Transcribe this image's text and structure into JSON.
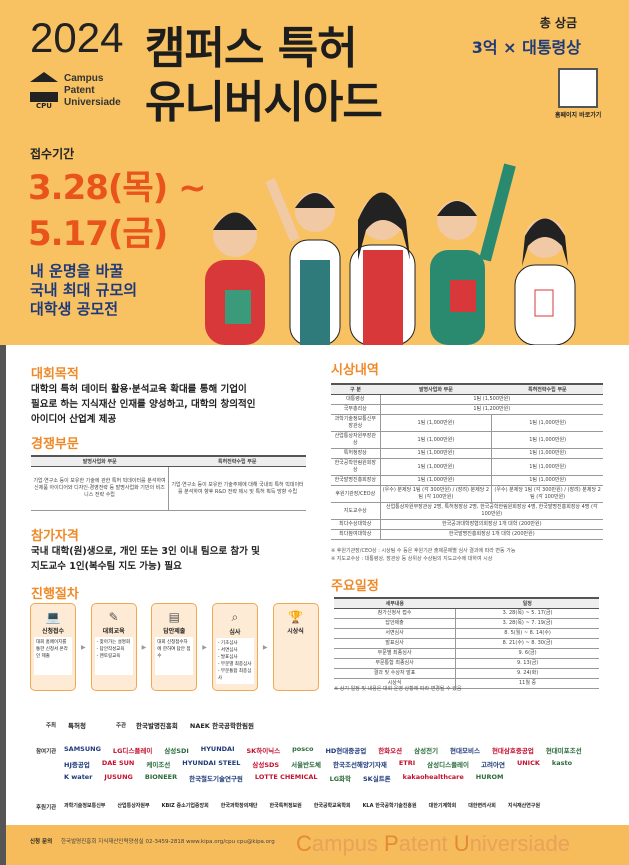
{
  "header": {
    "year": "2024",
    "title_line1": "캠퍼스 특허",
    "title_line2": "유니버시아드",
    "logo_abbr": "CPU",
    "logo_text": [
      "Campus",
      "Patent",
      "Universiade"
    ],
    "prize_label": "총 상금",
    "prize_value": "3억 × 대통령상",
    "qr_label": "홈페이지 바로가기",
    "reception_label": "접수기간",
    "date_start": "3.28(목) ~",
    "date_end": "5.17(금)",
    "slogan": [
      "내 운명을 바꿀",
      "국내 최대 규모의",
      "대학생 공모전"
    ]
  },
  "colors": {
    "background": "#F8C262",
    "accent": "#E8541C",
    "heading": "#EE8A2A",
    "navy": "#1f3a7a"
  },
  "purpose": {
    "title": "대회목적",
    "text": [
      "대학의 특허 데이터 활용·분석교육 확대를 통해 기업이",
      "필요로 하는 지식재산 인재를 양성하고, 대학의 창의적인",
      "아이디어 산업계 제공"
    ]
  },
  "categories": {
    "title": "경쟁부문",
    "headers": [
      "발명사업화 부문",
      "특허전략수립 부문"
    ],
    "cells": [
      "기업·연구소 등이 보유한 기술에 관한 특허 빅데이터를 분석하여 신제품 아이디어와 디자인·경영전략 등 발명사업화 기반의 비즈니스 전략 수립",
      "기업·연구소 등이 보유한 기술주제에 대해 국내외 특허 빅데이터를 분석하여 향후 R&D 전략 제시 및 특허 획득 방향 수립"
    ]
  },
  "eligibility": {
    "title": "참가자격",
    "text": [
      "국내 대학(원)생으로, 개인 또는 3인 이내 팀으로 참가 및",
      "지도교수 1인(복수팀 지도 가능) 필요"
    ]
  },
  "process": {
    "title": "진행절차",
    "steps": [
      {
        "name": "신청접수",
        "icon": "laptop-icon",
        "desc": "대회 홈페이지를 통한 신청서 온라인 제출"
      },
      {
        "name": "대회교육",
        "icon": "pen-icon",
        "desc": "- 찾아가는 설명회\n- 답안작성교육\n- 멘토링교육"
      },
      {
        "name": "답안제출",
        "icon": "document-icon",
        "desc": "대회 신청접수자에 한하여 답안 접수"
      },
      {
        "name": "심사",
        "icon": "magnifier-icon",
        "desc": "- 기초심사\n- 서면심사\n- 발표심사\n- 부문별 최종심사\n- 부문통합 최종심사"
      },
      {
        "name": "시상식",
        "icon": "trophy-icon",
        "desc": ""
      }
    ]
  },
  "awards": {
    "title": "시상내역",
    "headers": [
      "구 분",
      "발명사업화 부문",
      "특허전략수립 부문"
    ],
    "rows": [
      [
        "대통령상",
        "1팀 (1,500만원)",
        ""
      ],
      [
        "국무총리상",
        "1팀 (1,200만원)",
        ""
      ],
      [
        "과학기술정보통신부장관상",
        "1팀 (1,000만원)",
        "1팀 (1,000만원)"
      ],
      [
        "산업통상자원부장관상",
        "1팀 (1,000만원)",
        "1팀 (1,000만원)"
      ],
      [
        "특허청장상",
        "1팀 (1,000만원)",
        "1팀 (1,000만원)"
      ],
      [
        "한국공학한림원회장상",
        "1팀 (1,000만원)",
        "1팀 (1,000만원)"
      ],
      [
        "한국발명진흥회장상",
        "1팀 (1,000만원)",
        "1팀 (1,000만원)"
      ],
      [
        "후원기관장/CEO상",
        "(우수) 분제당 1팀 (각 300만원) / (장려) 분제당 2팀 (각 100만원)",
        "(우수) 분제당 1팀 (각 300만원) / (장려) 분제당 2팀 (각 100만원)"
      ],
      [
        "지도교수상",
        "산업통상자원부장관상 2명, 특허청장상 2명, 한국공학한림원회장상 4명, 한국발명진흥회장상 4명 (각 100만원)",
        ""
      ],
      [
        "최다수상대학상",
        "한국공과대학장협의회장상 1개 대학 (200만원)",
        ""
      ],
      [
        "최다참여대학상",
        "한국발명진흥회장상 1개 대학 (200만원)",
        ""
      ]
    ],
    "notes": [
      "※ 후원기관장/CEO상 : 시상팀 수 등은 후원기관 출제문제별 심사 결과에 따라 변동 가능",
      "※ 지도교수상 : 대통령상, 장관상 등 상위상 수상팀의 지도교수에 대하여 시상"
    ]
  },
  "schedule": {
    "title": "주요일정",
    "headers": [
      "세부내용",
      "일정"
    ],
    "rows": [
      [
        "참가신청서 접수",
        "3. 28(목) ~ 5. 17(금)"
      ],
      [
        "답안제출",
        "3. 28(목) ~ 7. 19(금)"
      ],
      [
        "서면심사",
        "8. 5(월) ~ 8. 14(수)"
      ],
      [
        "발표심사",
        "8. 21(수) ~ 8. 30(금)"
      ],
      [
        "부문별 최종심사",
        "9. 6(금)"
      ],
      [
        "부문통합 최종심사",
        "9. 13(금)"
      ],
      [
        "결과 및 수상자 발표",
        "9. 24(화)"
      ],
      [
        "시상식",
        "11월 중"
      ]
    ],
    "note": "※ 상기 일정 및 내용은 대회 운영 상황에 따라 변경될 수 있음"
  },
  "sponsors": {
    "host_label": "주최",
    "host": [
      "특허청"
    ],
    "organizer_label": "주관",
    "organizers": [
      "한국발명진흥회",
      "NAEK 한국공학한림원"
    ],
    "participants_label": "참여기관",
    "participants": [
      "SAMSUNG",
      "LG디스플레이",
      "삼성SDI",
      "HYUNDAI",
      "SK하이닉스",
      "posco",
      "HD현대중공업",
      "한화오션",
      "삼성전기",
      "현대모비스",
      "현대삼호중공업",
      "현대미포조선",
      "HJ중공업",
      "DAE SUN",
      "케이조선",
      "HYUNDAI STEEL",
      "삼성SDS",
      "서울반도체",
      "한국조선해양기자재",
      "ETRI",
      "삼성디스플레이",
      "고려아연",
      "UNICK",
      "kasto",
      "K water",
      "JUSUNG",
      "BIONEER",
      "한국철도기술연구원",
      "LOTTE CHEMICAL",
      "LG화학",
      "SK실트론",
      "kakaohealthcare",
      "HUROM"
    ],
    "supporters_label": "후원기관",
    "supporters": [
      "과학기술정보통신부",
      "산업통상자원부",
      "KBIZ 중소기업중앙회",
      "한국과학창의재단",
      "한국특허정보원",
      "한국공학교육학회",
      "KLA 한국공학기술진흥원",
      "대한기계학회",
      "대한변리사회",
      "지식재산연구원"
    ]
  },
  "footer": {
    "contact_label": "신청 문의",
    "contact": "한국발명진흥회 지식재산인력양성실 02-3459-2818   www.kipa.org/cpu   cpu@kipa.org",
    "wordmark": [
      "C",
      "ampus ",
      "P",
      "atent ",
      "U",
      "niversiade"
    ]
  }
}
